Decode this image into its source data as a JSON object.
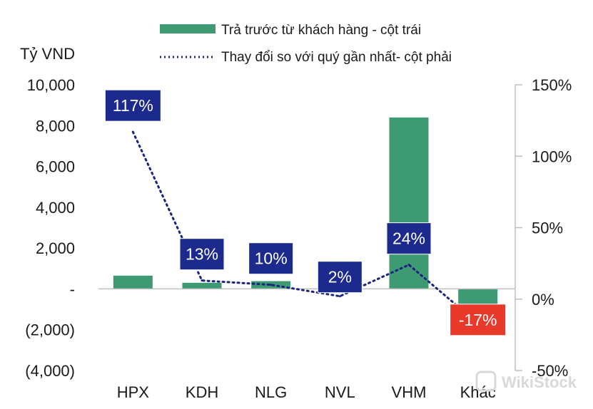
{
  "chart_data": {
    "type": "bar",
    "categories": [
      "HPX",
      "KDH",
      "NLG",
      "NVL",
      "VHM",
      "Khác"
    ],
    "series": [
      {
        "name": "Trả trước từ khách hàng - cột trái",
        "type": "bar",
        "axis": "left",
        "values": [
          650,
          300,
          380,
          250,
          8400,
          -2200
        ]
      },
      {
        "name": "Thay đổi  so với quý gần nhất- cột phải",
        "type": "line",
        "style": "dotted",
        "axis": "right",
        "values": [
          117,
          13,
          10,
          2,
          24,
          -17
        ],
        "labels": [
          "117%",
          "13%",
          "10%",
          "2%",
          "24%",
          "-17%"
        ]
      }
    ],
    "ylabel": "Tỷ VND",
    "ylim_left": [
      -4000,
      10000
    ],
    "ylim_right": [
      -50,
      150
    ],
    "left_ticks": [
      {
        "value": 10000,
        "label": "10,000"
      },
      {
        "value": 8000,
        "label": "8,000"
      },
      {
        "value": 6000,
        "label": "6,000"
      },
      {
        "value": 4000,
        "label": "4,000"
      },
      {
        "value": 2000,
        "label": "2,000"
      },
      {
        "value": 0,
        "label": "-"
      },
      {
        "value": -2000,
        "label": "(2,000)"
      },
      {
        "value": -4000,
        "label": "(4,000)"
      }
    ],
    "right_ticks": [
      {
        "value": 150,
        "label": "150%"
      },
      {
        "value": 100,
        "label": "100%"
      },
      {
        "value": 50,
        "label": "50%"
      },
      {
        "value": 0,
        "label": "0%"
      },
      {
        "value": -50,
        "label": "-50%"
      }
    ],
    "legend_position": "top",
    "grid": false
  },
  "colors": {
    "bar": "#3d9a72",
    "line": "#1a237e",
    "badge_positive": "#1b2a8c",
    "badge_negative": "#e8392a",
    "axis": "#bfbfbf"
  },
  "watermark": {
    "text": "WikiStock",
    "icon": "wikistock-logo-icon"
  }
}
